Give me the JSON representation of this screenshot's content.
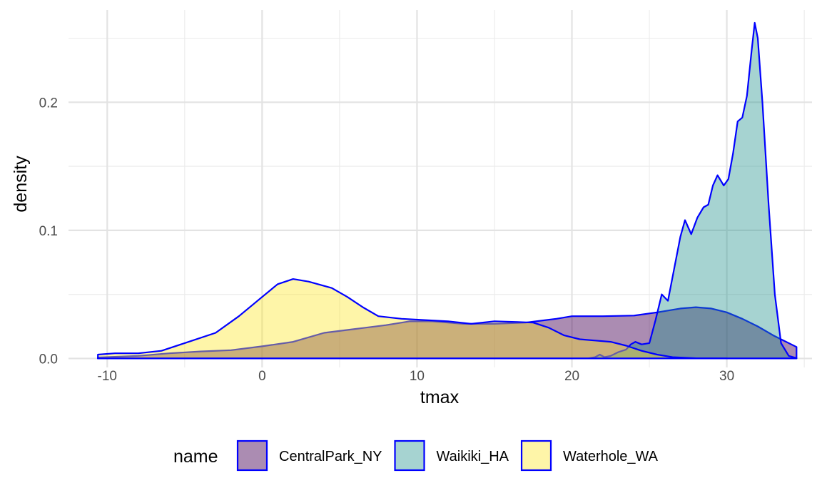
{
  "chart_data": {
    "type": "area",
    "title": "",
    "xlabel": "tmax",
    "ylabel": "density",
    "xlim": [
      -12.5,
      35.5
    ],
    "ylim": [
      -0.007,
      0.272
    ],
    "x_ticks": [
      -10,
      0,
      10,
      20,
      30
    ],
    "x_tick_labels": [
      "-10",
      "0",
      "10",
      "20",
      "30"
    ],
    "y_ticks": [
      0.0,
      0.1,
      0.2
    ],
    "y_tick_labels": [
      "0.0",
      "0.1",
      "0.2"
    ],
    "grid": true,
    "legend": {
      "position": "bottom",
      "title": "name"
    },
    "outline_color": "#0000FF",
    "series": [
      {
        "name": "CentralPark_NY",
        "fill": "#440154",
        "fill_opacity": 0.45,
        "points": [
          [
            -10.6,
            0.0008
          ],
          [
            -8,
            0.002
          ],
          [
            -6,
            0.004
          ],
          [
            -4,
            0.0055
          ],
          [
            -2,
            0.0065
          ],
          [
            0,
            0.0095
          ],
          [
            2,
            0.013
          ],
          [
            4,
            0.02
          ],
          [
            6,
            0.023
          ],
          [
            8,
            0.026
          ],
          [
            9.5,
            0.029
          ],
          [
            11,
            0.029
          ],
          [
            13,
            0.027
          ],
          [
            15,
            0.027
          ],
          [
            17,
            0.028
          ],
          [
            19,
            0.031
          ],
          [
            20,
            0.033
          ],
          [
            22,
            0.033
          ],
          [
            24,
            0.0335
          ],
          [
            25.5,
            0.036
          ],
          [
            27,
            0.039
          ],
          [
            28,
            0.04
          ],
          [
            29,
            0.039
          ],
          [
            30,
            0.036
          ],
          [
            31,
            0.031
          ],
          [
            32,
            0.025
          ],
          [
            33,
            0.018
          ],
          [
            34.5,
            0.009
          ]
        ]
      },
      {
        "name": "Waikiki_HA",
        "fill": "#21908C",
        "fill_opacity": 0.4,
        "points": [
          [
            -10.6,
            0
          ],
          [
            21,
            0
          ],
          [
            21.5,
            0.001
          ],
          [
            21.8,
            0.003
          ],
          [
            22.1,
            0.001
          ],
          [
            22.5,
            0.002
          ],
          [
            23,
            0.005
          ],
          [
            23.5,
            0.007
          ],
          [
            23.8,
            0.011
          ],
          [
            24.1,
            0.013
          ],
          [
            24.5,
            0.011
          ],
          [
            25,
            0.012
          ],
          [
            25.4,
            0.03
          ],
          [
            25.8,
            0.05
          ],
          [
            26.2,
            0.045
          ],
          [
            26.6,
            0.07
          ],
          [
            27,
            0.095
          ],
          [
            27.3,
            0.108
          ],
          [
            27.7,
            0.097
          ],
          [
            28.1,
            0.11
          ],
          [
            28.5,
            0.118
          ],
          [
            28.8,
            0.12
          ],
          [
            29.1,
            0.135
          ],
          [
            29.4,
            0.143
          ],
          [
            29.8,
            0.135
          ],
          [
            30.1,
            0.14
          ],
          [
            30.4,
            0.16
          ],
          [
            30.7,
            0.185
          ],
          [
            31.0,
            0.188
          ],
          [
            31.3,
            0.205
          ],
          [
            31.6,
            0.24
          ],
          [
            31.8,
            0.262
          ],
          [
            32.0,
            0.25
          ],
          [
            32.3,
            0.2
          ],
          [
            32.7,
            0.12
          ],
          [
            33.1,
            0.05
          ],
          [
            33.5,
            0.012
          ],
          [
            34,
            0.002
          ],
          [
            34.5,
            0.0003
          ]
        ]
      },
      {
        "name": "Waterhole_WA",
        "fill": "#FDE725",
        "fill_opacity": 0.4,
        "points": [
          [
            -10.6,
            0.003
          ],
          [
            -9.5,
            0.004
          ],
          [
            -8,
            0.004
          ],
          [
            -6.5,
            0.006
          ],
          [
            -5,
            0.012
          ],
          [
            -3,
            0.02
          ],
          [
            -1.5,
            0.033
          ],
          [
            0,
            0.048
          ],
          [
            1,
            0.058
          ],
          [
            2,
            0.062
          ],
          [
            3,
            0.06
          ],
          [
            4.5,
            0.055
          ],
          [
            5.5,
            0.048
          ],
          [
            6.5,
            0.04
          ],
          [
            7.5,
            0.033
          ],
          [
            9,
            0.031
          ],
          [
            10.5,
            0.03
          ],
          [
            12,
            0.029
          ],
          [
            13.5,
            0.027
          ],
          [
            15,
            0.029
          ],
          [
            16.5,
            0.0285
          ],
          [
            17.5,
            0.028
          ],
          [
            18.5,
            0.024
          ],
          [
            19.5,
            0.018
          ],
          [
            20.5,
            0.015
          ],
          [
            21.5,
            0.014
          ],
          [
            22.5,
            0.013
          ],
          [
            23.5,
            0.01
          ],
          [
            24.5,
            0.006
          ],
          [
            25.5,
            0.003
          ],
          [
            26.5,
            0.001
          ],
          [
            28,
            0.0002
          ],
          [
            30,
            0.0
          ]
        ]
      }
    ]
  }
}
